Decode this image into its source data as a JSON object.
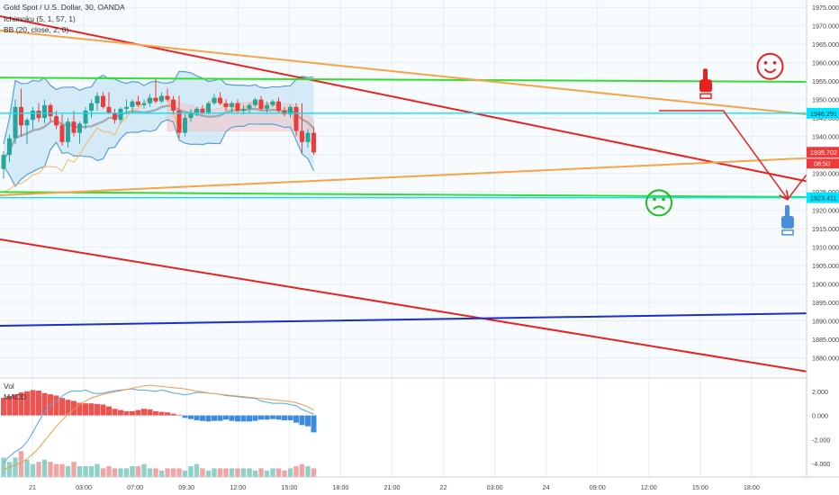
{
  "chart_data": {
    "type": "candlestick",
    "symbol_title": "Gold Spot / U.S. Dollar, 30, OANDA",
    "indicators": [
      "Ichimoku (5, 1, 57, 1)",
      "BB (20, close, 2, 0)"
    ],
    "price_axis": {
      "ylim": [
        1875,
        1977
      ],
      "ticks": [
        1975,
        1970,
        1965,
        1960,
        1955,
        1950,
        1945,
        1940,
        1935,
        1930,
        1925,
        1920,
        1915,
        1910,
        1905,
        1900,
        1895,
        1890,
        1885,
        1880
      ],
      "tick_labels": [
        "1975.000",
        "1970.000",
        "1965.000",
        "1960.000",
        "1955.000",
        "1950.000",
        "1945.000",
        "1940.000",
        "1935.000",
        "1930.000",
        "1925.000",
        "1920.000",
        "1915.000",
        "1910.000",
        "1905.000",
        "1900.000",
        "1895.000",
        "1890.000",
        "1885.000",
        "1880.000"
      ],
      "markers": [
        {
          "value": 1946.291,
          "label": "1946.291",
          "color": "#00e5ff"
        },
        {
          "value": 1935.702,
          "label": "1935.702",
          "color": "#ef3a3a"
        },
        {
          "value": 1923.411,
          "label": "1923.411",
          "color": "#00e5ff"
        }
      ],
      "countdown": "08:50"
    },
    "time_axis": {
      "labels": [
        "21",
        "03:00",
        "07:00",
        "09:30",
        "12:00",
        "15:00",
        "18:00",
        "21:00",
        "22",
        "03:00",
        "24",
        "09:00",
        "12:00",
        "15:00",
        "18:00"
      ]
    },
    "candles_ohlc": [
      [
        1931.2,
        1936.0,
        1928.5,
        1935.0
      ],
      [
        1935.0,
        1940.5,
        1933.0,
        1939.5
      ],
      [
        1939.5,
        1950.0,
        1938.0,
        1948.0
      ],
      [
        1948.0,
        1953.0,
        1940.0,
        1943.0
      ],
      [
        1943.0,
        1945.0,
        1938.0,
        1944.5
      ],
      [
        1944.5,
        1948.0,
        1942.0,
        1947.0
      ],
      [
        1947.0,
        1949.0,
        1944.0,
        1945.0
      ],
      [
        1945.0,
        1950.0,
        1943.5,
        1948.5
      ],
      [
        1948.5,
        1949.0,
        1944.0,
        1945.5
      ],
      [
        1945.5,
        1947.0,
        1942.0,
        1943.0
      ],
      [
        1943.0,
        1946.0,
        1937.5,
        1938.5
      ],
      [
        1938.5,
        1945.0,
        1937.0,
        1944.0
      ],
      [
        1944.0,
        1947.0,
        1940.0,
        1941.0
      ],
      [
        1941.0,
        1944.0,
        1938.0,
        1943.5
      ],
      [
        1943.5,
        1948.0,
        1942.0,
        1947.0
      ],
      [
        1947.0,
        1950.0,
        1945.0,
        1949.0
      ],
      [
        1949.0,
        1952.0,
        1947.0,
        1951.0
      ],
      [
        1951.0,
        1952.0,
        1947.5,
        1948.0
      ],
      [
        1948.0,
        1952.0,
        1946.0,
        1946.5
      ],
      [
        1946.5,
        1947.5,
        1943.5,
        1944.5
      ],
      [
        1944.5,
        1948.0,
        1943.5,
        1947.5
      ],
      [
        1947.5,
        1950.0,
        1946.0,
        1948.0
      ],
      [
        1948.0,
        1950.0,
        1946.5,
        1949.5
      ],
      [
        1949.5,
        1951.0,
        1948.0,
        1948.5
      ],
      [
        1948.5,
        1950.0,
        1947.5,
        1949.0
      ],
      [
        1949.0,
        1951.5,
        1948.0,
        1950.5
      ],
      [
        1950.5,
        1956.0,
        1949.0,
        1949.5
      ],
      [
        1949.5,
        1952.0,
        1949.0,
        1951.0
      ],
      [
        1951.0,
        1953.0,
        1949.5,
        1950.0
      ],
      [
        1950.0,
        1951.0,
        1946.0,
        1947.0
      ],
      [
        1947.0,
        1951.0,
        1939.5,
        1941.0
      ],
      [
        1941.0,
        1946.0,
        1940.0,
        1945.0
      ],
      [
        1945.0,
        1947.5,
        1944.0,
        1946.5
      ],
      [
        1946.5,
        1948.0,
        1945.5,
        1947.5
      ],
      [
        1947.5,
        1948.5,
        1946.0,
        1946.5
      ],
      [
        1946.5,
        1949.5,
        1946.0,
        1949.0
      ],
      [
        1949.0,
        1951.5,
        1948.5,
        1950.5
      ],
      [
        1950.5,
        1952.0,
        1948.5,
        1949.0
      ],
      [
        1949.0,
        1950.0,
        1947.0,
        1948.0
      ],
      [
        1948.0,
        1949.5,
        1946.5,
        1949.0
      ],
      [
        1949.0,
        1950.0,
        1946.5,
        1947.0
      ],
      [
        1947.0,
        1948.5,
        1946.0,
        1947.5
      ],
      [
        1947.5,
        1949.0,
        1946.5,
        1948.5
      ],
      [
        1948.5,
        1950.5,
        1948.0,
        1950.0
      ],
      [
        1950.0,
        1951.0,
        1947.0,
        1947.5
      ],
      [
        1947.5,
        1949.5,
        1946.5,
        1948.5
      ],
      [
        1948.5,
        1950.0,
        1948.0,
        1949.5
      ],
      [
        1949.5,
        1950.5,
        1946.5,
        1947.0
      ],
      [
        1947.0,
        1948.0,
        1945.5,
        1946.0
      ],
      [
        1946.0,
        1948.5,
        1945.0,
        1948.0
      ],
      [
        1948.0,
        1949.0,
        1940.0,
        1941.5
      ],
      [
        1941.5,
        1949.0,
        1935.5,
        1938.5
      ],
      [
        1938.5,
        1942.0,
        1937.0,
        1941.0
      ],
      [
        1941.0,
        1942.5,
        1935.0,
        1935.7
      ]
    ],
    "drawn_lines": [
      {
        "color": "#e8231f",
        "from": [
          -8,
          1975.0
        ],
        "to": [
          300,
          1875.0
        ]
      },
      {
        "color": "#e8231f",
        "from": [
          -8,
          1914.0
        ],
        "to": [
          300,
          1834.0
        ]
      },
      {
        "color": "#33dd33",
        "from": [
          -8,
          1956.0
        ],
        "to": [
          300,
          1953.5
        ]
      },
      {
        "color": "#33dd33",
        "from": [
          -8,
          1925.0
        ],
        "to": [
          300,
          1922.0
        ]
      },
      {
        "color": "#f5a446",
        "from": [
          -8,
          1970.0
        ],
        "to": [
          243,
          1928.5
        ]
      },
      {
        "color": "#f5a446",
        "from": [
          -8,
          1923.5
        ],
        "to": [
          300,
          1946.0
        ]
      },
      {
        "color": "#1a2fc8",
        "from": [
          -8,
          1888.5
        ],
        "to": [
          300,
          1896.0
        ]
      },
      {
        "color": "#00e5ff",
        "from": [
          -8,
          1946.3
        ],
        "to": [
          300,
          1946.3
        ]
      },
      {
        "color": "#00e5ff",
        "from": [
          -8,
          1923.4
        ],
        "to": [
          300,
          1923.4
        ]
      }
    ],
    "path_arrows": [
      [
        [
          112,
          1947.0
        ],
        [
          123,
          1947.0
        ],
        [
          134,
          1923.0
        ]
      ],
      [
        [
          134,
          1923.0
        ],
        [
          150,
          1956.0
        ]
      ],
      [
        [
          150,
          1956.0
        ],
        [
          182,
          1936.0
        ]
      ],
      [
        [
          182,
          1936.0
        ],
        [
          196,
          1946.0
        ]
      ]
    ],
    "annotation_icons": [
      {
        "icon": "hand-pointing-icon",
        "color": "#e8231f",
        "at": [
          120,
          1954.5
        ]
      },
      {
        "icon": "smiley-icon",
        "color": "#e8231f",
        "at": [
          131,
          1959.0
        ]
      },
      {
        "icon": "hand-pointing-icon",
        "color": "#4a90d9",
        "at": [
          154,
          1963.5
        ]
      },
      {
        "icon": "sad-face-icon",
        "color": "#22bb22",
        "at": [
          112,
          1922.0
        ]
      },
      {
        "icon": "hand-pointing-icon",
        "color": "#4a90d9",
        "at": [
          134,
          1917.5
        ]
      },
      {
        "icon": "hand-pointing-icon",
        "color": "#4a90d9",
        "at": [
          181,
          1931.5
        ]
      },
      {
        "icon": "hand-pointing-icon",
        "color": "#e8231f",
        "at": [
          162,
          1887.5
        ]
      }
    ],
    "event_flags": [
      {
        "icon": "us-flag-icon",
        "count": "3",
        "bar": 144.5
      },
      {
        "icon": "us-flag-icon",
        "count": "3",
        "bar": 176.5
      }
    ],
    "macd": {
      "name": "MACD",
      "ylim": [
        -5.1,
        3.1
      ],
      "ticks": [
        2,
        0,
        -2,
        -4
      ],
      "tick_labels": [
        "2.000",
        "0.000",
        "-2.000",
        "-4.000"
      ],
      "histogram": [
        1.45,
        1.6,
        1.75,
        1.9,
        2.0,
        2.1,
        2.05,
        1.85,
        1.75,
        1.65,
        1.45,
        1.3,
        1.2,
        1.05,
        1.0,
        1.0,
        0.95,
        0.9,
        0.75,
        0.55,
        0.45,
        0.35,
        0.35,
        0.45,
        0.55,
        0.5,
        0.35,
        0.3,
        0.25,
        0.15,
        0.05,
        -0.2,
        -0.3,
        -0.4,
        -0.45,
        -0.5,
        -0.45,
        -0.45,
        -0.35,
        -0.45,
        -0.5,
        -0.5,
        -0.5,
        -0.45,
        -0.35,
        -0.35,
        -0.3,
        -0.35,
        -0.4,
        -0.4,
        -0.6,
        -0.8,
        -0.9,
        -1.4
      ],
      "macd_line": [
        -3.9,
        -3.4,
        -3.0,
        -2.7,
        -2.2,
        -1.4,
        -0.5,
        0.3,
        0.9,
        1.2,
        1.6,
        1.9,
        2.05,
        2.0,
        2.1,
        1.9,
        1.8,
        1.85,
        1.95,
        2.05,
        2.1,
        2.15,
        2.2,
        2.1,
        2.1,
        2.05,
        2.0,
        2.1,
        2.0,
        1.85,
        1.8,
        1.7,
        1.8,
        1.9,
        1.9,
        1.85,
        1.8,
        1.75,
        1.65,
        1.6,
        1.55,
        1.5,
        1.45,
        1.4,
        1.2,
        1.1,
        1.0,
        1.0,
        1.0,
        0.9,
        0.8,
        0.5,
        0.3,
        0.1
      ],
      "signal_line": [
        -4.5,
        -4.3,
        -4.1,
        -3.9,
        -3.6,
        -3.2,
        -2.7,
        -2.1,
        -1.5,
        -0.9,
        -0.4,
        0.1,
        0.5,
        0.9,
        1.2,
        1.45,
        1.6,
        1.75,
        1.85,
        1.95,
        2.05,
        2.15,
        2.25,
        2.35,
        2.45,
        2.5,
        2.45,
        2.4,
        2.35,
        2.3,
        2.25,
        2.2,
        2.1,
        2.0,
        1.95,
        1.85,
        1.8,
        1.75,
        1.7,
        1.65,
        1.6,
        1.55,
        1.5,
        1.45,
        1.4,
        1.35,
        1.3,
        1.25,
        1.2,
        1.15,
        1.05,
        0.9,
        0.7,
        0.45
      ]
    },
    "volume": {
      "name": "Vol",
      "values": [
        9,
        7,
        9,
        12,
        8,
        6,
        7,
        8,
        7,
        6,
        6,
        5,
        7,
        5,
        5,
        5,
        6,
        4,
        5,
        4,
        4,
        4,
        5,
        5,
        6,
        4,
        4,
        3,
        4,
        4,
        4,
        3,
        5,
        6,
        4,
        3,
        4,
        4,
        4,
        4,
        4,
        4,
        4,
        3,
        4,
        3,
        4,
        4,
        3,
        4,
        5,
        6,
        5,
        4
      ]
    }
  }
}
